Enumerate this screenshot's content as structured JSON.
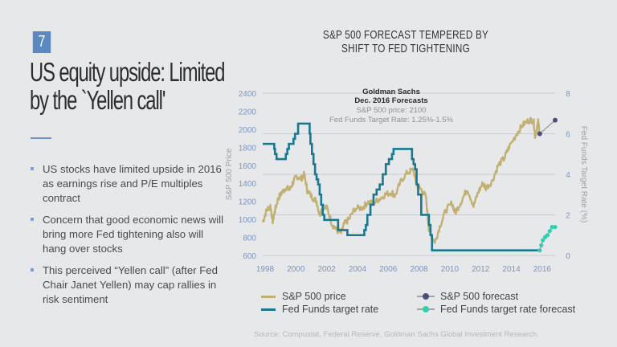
{
  "slide": {
    "page_number": "7",
    "title": "US equity upside: Limited by the `Yellen call'",
    "bullets": [
      "US stocks have limited upside in 2016 as earnings rise and P/E multiples contract",
      "Concern that good economic news will bring more Fed tightening also will hang over stocks",
      "This perceived “Yellen call” (after Fed Chair Janet Yellen) may cap rallies in risk sentiment"
    ],
    "source": "Source: Compustat, Federal Reserve, Goldman Sachs Global Investment Research."
  },
  "colors": {
    "sp500": "#c2b073",
    "fed": "#17788f",
    "sp500_forecast": "#4b4f78",
    "fed_forecast": "#2fd0b2",
    "forecast_line": "#9a9ca3",
    "axis_text": "#7a94c2",
    "grid": "#c9cacd"
  },
  "chart_data": {
    "type": "line",
    "title": "S&P 500 FORECAST TEMPERED BY SHIFT TO FED TIGHTENING",
    "title_lines": [
      "S&P 500 FORECAST TEMPERED BY",
      "SHIFT TO FED TIGHTENING"
    ],
    "xlabel": "",
    "ylabel": "S&P 500 Price",
    "y2label": "Fed Funds Target Rate (%)",
    "xlim": [
      1998,
      2017
    ],
    "ylim": [
      600,
      2400
    ],
    "y2lim": [
      0,
      8
    ],
    "x_ticks": [
      "1998",
      "2000",
      "2002",
      "2004",
      "2006",
      "2008",
      "2010",
      "2012",
      "2014",
      "2016"
    ],
    "y_ticks": [
      "2400",
      "2200",
      "2000",
      "1800",
      "1600",
      "1400",
      "1200",
      "1000",
      "800",
      "600"
    ],
    "y2_ticks": [
      "8",
      "6",
      "4",
      "2",
      "0"
    ],
    "grid": "horizontal",
    "annotation": {
      "line1": "Goldman Sachs",
      "line2": "Dec. 2016 Forecasts",
      "line3": "S&P 500 price: 2100",
      "line4": "Fed Funds Target Rate:  1.25%-1.5%"
    },
    "legend": [
      {
        "name": "S&P 500 price",
        "kind": "line"
      },
      {
        "name": "S&P 500 forecast",
        "kind": "forecast"
      },
      {
        "name": "Fed Funds target rate",
        "kind": "line"
      },
      {
        "name": "Fed Funds target rate forecast",
        "kind": "forecast"
      }
    ],
    "legend_position": "bottom",
    "series": [
      {
        "name": "S&P 500 price",
        "axis": "left",
        "x": [
          1998.0,
          1998.25,
          1998.5,
          1998.65,
          1998.8,
          1999.0,
          1999.25,
          1999.5,
          1999.75,
          2000.0,
          2000.2,
          2000.5,
          2000.7,
          2000.9,
          2001.2,
          2001.5,
          2001.7,
          2001.9,
          2002.2,
          2002.5,
          2002.8,
          2003.1,
          2003.3,
          2003.6,
          2004.0,
          2004.5,
          2004.8,
          2005.2,
          2005.6,
          2006.0,
          2006.4,
          2006.6,
          2007.0,
          2007.4,
          2007.8,
          2008.0,
          2008.3,
          2008.6,
          2008.8,
          2009.0,
          2009.2,
          2009.5,
          2009.9,
          2010.3,
          2010.5,
          2010.9,
          2011.3,
          2011.7,
          2012.0,
          2012.3,
          2012.5,
          2012.9,
          2013.3,
          2013.7,
          2014.0,
          2014.5,
          2014.9,
          2015.3,
          2015.6,
          2015.7,
          2015.9,
          2016.0
        ],
        "y": [
          970,
          1100,
          1150,
          980,
          1100,
          1230,
          1300,
          1350,
          1330,
          1420,
          1480,
          1450,
          1500,
          1320,
          1250,
          1200,
          1050,
          1150,
          1120,
          950,
          880,
          850,
          950,
          1000,
          1120,
          1130,
          1190,
          1180,
          1230,
          1280,
          1300,
          1260,
          1430,
          1520,
          1550,
          1380,
          1330,
          1250,
          900,
          800,
          750,
          920,
          1100,
          1180,
          1070,
          1200,
          1340,
          1150,
          1300,
          1400,
          1350,
          1420,
          1600,
          1680,
          1800,
          1950,
          2050,
          2100,
          2100,
          1920,
          2080,
          1950
        ]
      },
      {
        "name": "Fed Funds target rate",
        "axis": "right",
        "x": [
          1998.0,
          1998.7,
          1998.75,
          1998.8,
          1998.9,
          1999.4,
          1999.5,
          1999.6,
          1999.7,
          1999.9,
          2000.0,
          2000.1,
          2000.3,
          2000.4,
          2001.0,
          2001.05,
          2001.1,
          2001.2,
          2001.3,
          2001.4,
          2001.5,
          2001.6,
          2001.7,
          2001.8,
          2001.9,
          2002.0,
          2002.9,
          2003.5,
          2004.5,
          2004.6,
          2004.7,
          2004.8,
          2005.0,
          2005.2,
          2005.4,
          2005.6,
          2005.8,
          2006.0,
          2006.2,
          2006.4,
          2006.5,
          2007.6,
          2007.7,
          2007.8,
          2007.9,
          2008.0,
          2008.1,
          2008.3,
          2008.8,
          2008.9,
          2009.0,
          2015.9,
          2016.0
        ],
        "y": [
          5.5,
          5.5,
          5.25,
          5.0,
          4.75,
          4.75,
          5.0,
          5.25,
          5.5,
          5.5,
          5.75,
          6.0,
          6.5,
          6.5,
          6.5,
          6.0,
          5.5,
          5.0,
          4.5,
          4.0,
          3.75,
          3.5,
          3.0,
          2.5,
          2.0,
          1.75,
          1.25,
          1.0,
          1.0,
          1.25,
          1.5,
          2.0,
          2.5,
          3.0,
          3.25,
          3.5,
          4.0,
          4.5,
          4.75,
          5.0,
          5.25,
          5.25,
          4.75,
          4.5,
          4.25,
          3.5,
          3.0,
          2.0,
          1.5,
          1.0,
          0.25,
          0.25,
          0.25
        ]
      },
      {
        "name": "S&P 500 forecast",
        "axis": "left",
        "x": [
          2016.0,
          2017.0
        ],
        "y": [
          1950,
          2100
        ]
      },
      {
        "name": "Fed Funds target rate forecast",
        "axis": "right",
        "x": [
          2016.0,
          2016.1,
          2016.2,
          2016.35,
          2016.5,
          2016.65,
          2016.8,
          2017.0
        ],
        "y": [
          0.25,
          0.5,
          0.75,
          0.9,
          1.0,
          1.2,
          1.4,
          1.4
        ]
      }
    ]
  }
}
